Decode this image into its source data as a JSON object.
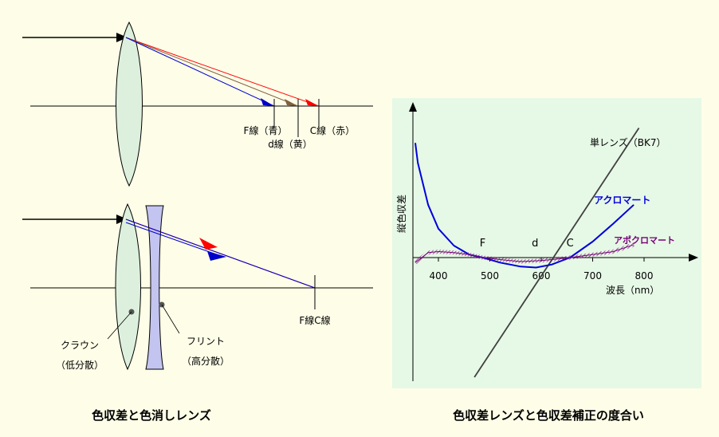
{
  "left": {
    "top_labels": {
      "f_line": "F線（青）",
      "d_line": "d線（黄）",
      "c_line": "C線（赤）"
    },
    "bottom_labels": {
      "fc_line": "F線C線",
      "crown": "クラウン",
      "crown_sub": "（低分散）",
      "flint": "フリント",
      "flint_sub": "（高分散）"
    },
    "caption": "色収差と色消しレンズ"
  },
  "right": {
    "caption": "色収差レンズと色収差補正の度合い",
    "chart_data": {
      "type": "line",
      "title": "",
      "xlabel": "波長（nm）",
      "ylabel": "縦色収差",
      "x_ticks": [
        400,
        500,
        600,
        700,
        800
      ],
      "markers": [
        {
          "name": "F",
          "x": 486
        },
        {
          "name": "d",
          "x": 588
        },
        {
          "name": "C",
          "x": 656
        }
      ],
      "series": [
        {
          "name": "単レンズ（BK7）",
          "color": "#404040",
          "x": [
            470,
            790
          ],
          "y": [
            -12,
            13
          ]
        },
        {
          "name": "アクロマート",
          "color": "#0000dd",
          "x": [
            355,
            360,
            380,
            400,
            430,
            460,
            486,
            520,
            560,
            590,
            620,
            656,
            700,
            740,
            780
          ],
          "y": [
            11.5,
            9.5,
            5.3,
            2.9,
            1.2,
            0.3,
            0.0,
            -0.5,
            -0.9,
            -1.0,
            -0.7,
            0.0,
            1.6,
            3.4,
            5.3
          ]
        },
        {
          "name": "アポクロマート",
          "color": "#770077",
          "x": [
            355,
            380,
            400,
            430,
            460,
            486,
            520,
            560,
            600,
            640,
            656,
            700,
            740,
            780
          ],
          "y": [
            -0.5,
            0.5,
            0.6,
            0.5,
            0.3,
            0.0,
            -0.2,
            -0.4,
            -0.3,
            -0.1,
            0.0,
            0.3,
            0.6,
            1.3
          ]
        }
      ]
    }
  },
  "colors": {
    "background": "#fefee8",
    "chart_panel": "#e6f8e6",
    "lens_fill": "#ddf0dd",
    "flint_fill": "#c4c4f0",
    "ray_red": "#ff0000",
    "ray_blue": "#0000cc",
    "ray_yellow": "#806040"
  }
}
